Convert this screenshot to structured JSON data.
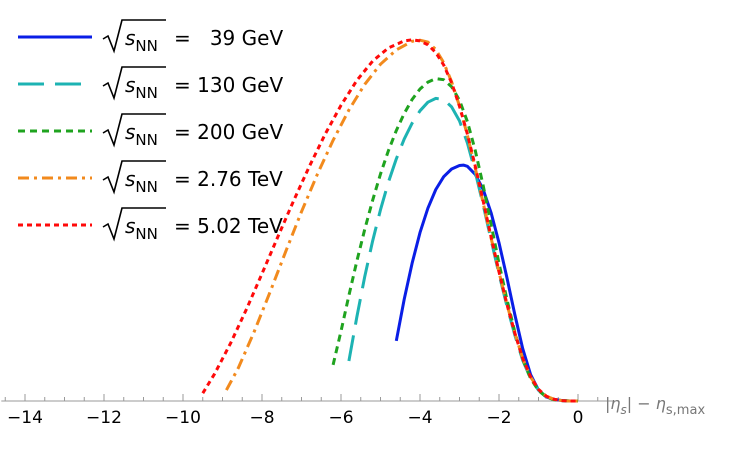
{
  "chart_data": {
    "type": "line",
    "xlabel_parts": {
      "open": "|",
      "eta": "η",
      "s": "s",
      "mid": "| − ",
      "eta2": "η",
      "sub2": "s,max"
    },
    "ylabel": "",
    "xlim": [
      -14.6,
      0.9
    ],
    "ylim": [
      0,
      1.0
    ],
    "x_ticks": [
      -14,
      -12,
      -10,
      -8,
      -6,
      -4,
      -2,
      0
    ],
    "x_tick_labels": [
      "−14",
      "−12",
      "−10",
      "−8",
      "−6",
      "−4",
      "−2",
      "0"
    ],
    "grid": false,
    "legend_position": "top-left",
    "legend_sym": {
      "s": "s",
      "sub": "NN"
    },
    "series": [
      {
        "name": "=   39 GeV",
        "color": "#0a1ee6",
        "dash": "solid",
        "x": [
          -4.6,
          -4.4,
          -4.2,
          -4.0,
          -3.8,
          -3.6,
          -3.4,
          -3.2,
          -3.0,
          -2.9,
          -2.8,
          -2.6,
          -2.4,
          -2.2,
          -2.0,
          -1.8,
          -1.6,
          -1.4,
          -1.2,
          -1.0,
          -0.8,
          -0.6,
          -0.4,
          -0.2,
          0.0
        ],
        "y": [
          0.155,
          0.262,
          0.355,
          0.434,
          0.497,
          0.545,
          0.578,
          0.598,
          0.607,
          0.608,
          0.605,
          0.584,
          0.545,
          0.485,
          0.408,
          0.318,
          0.223,
          0.135,
          0.068,
          0.028,
          0.01,
          0.004,
          0.001,
          0.0,
          0.0
        ]
      },
      {
        "name": "= 130 GeV",
        "color": "#1db3b3",
        "dash": "long",
        "x": [
          -5.8,
          -5.6,
          -5.4,
          -5.2,
          -5.0,
          -4.8,
          -4.6,
          -4.4,
          -4.2,
          -4.0,
          -3.8,
          -3.6,
          -3.4,
          -3.2,
          -3.0,
          -2.8,
          -2.6,
          -2.4,
          -2.2,
          -2.0,
          -1.8,
          -1.6,
          -1.4,
          -1.2,
          -1.0,
          -0.8,
          -0.6,
          -0.4,
          -0.2,
          0.0
        ],
        "y": [
          0.103,
          0.216,
          0.32,
          0.412,
          0.493,
          0.564,
          0.624,
          0.675,
          0.716,
          0.748,
          0.77,
          0.78,
          0.777,
          0.758,
          0.722,
          0.665,
          0.59,
          0.505,
          0.415,
          0.327,
          0.245,
          0.17,
          0.105,
          0.058,
          0.028,
          0.011,
          0.004,
          0.001,
          0.0,
          0.0
        ]
      },
      {
        "name": "= 200 GeV",
        "color": "#1fa31f",
        "dash": "short",
        "x": [
          -6.2,
          -6.0,
          -5.8,
          -5.6,
          -5.4,
          -5.2,
          -5.0,
          -4.8,
          -4.6,
          -4.4,
          -4.2,
          -4.0,
          -3.8,
          -3.6,
          -3.4,
          -3.2,
          -3.0,
          -2.8,
          -2.6,
          -2.4,
          -2.2,
          -2.0,
          -1.8,
          -1.6,
          -1.4,
          -1.2,
          -1.0,
          -0.8,
          -0.6,
          -0.4,
          -0.2,
          0.0
        ],
        "y": [
          0.093,
          0.18,
          0.272,
          0.36,
          0.442,
          0.517,
          0.585,
          0.645,
          0.697,
          0.741,
          0.777,
          0.804,
          0.822,
          0.831,
          0.828,
          0.81,
          0.775,
          0.72,
          0.645,
          0.555,
          0.455,
          0.355,
          0.262,
          0.178,
          0.108,
          0.058,
          0.027,
          0.01,
          0.003,
          0.001,
          0.0,
          0.0
        ]
      },
      {
        "name": "= 2.76 TeV",
        "color": "#f28a1d",
        "dash": "dashdot",
        "x": [
          -8.9,
          -8.6,
          -8.2,
          -7.8,
          -7.4,
          -7.0,
          -6.6,
          -6.2,
          -5.8,
          -5.4,
          -5.0,
          -4.6,
          -4.2,
          -4.0,
          -3.8,
          -3.6,
          -3.4,
          -3.2,
          -3.0,
          -2.8,
          -2.6,
          -2.4,
          -2.2,
          -2.0,
          -1.8,
          -1.6,
          -1.4,
          -1.2,
          -1.0,
          -0.8,
          -0.6,
          -0.4,
          -0.2,
          0.0
        ],
        "y": [
          0.028,
          0.085,
          0.178,
          0.28,
          0.385,
          0.488,
          0.584,
          0.672,
          0.75,
          0.816,
          0.868,
          0.905,
          0.927,
          0.93,
          0.925,
          0.906,
          0.872,
          0.823,
          0.76,
          0.685,
          0.6,
          0.51,
          0.42,
          0.332,
          0.25,
          0.175,
          0.11,
          0.062,
          0.03,
          0.012,
          0.004,
          0.001,
          0.0,
          0.0
        ]
      },
      {
        "name": "= 5.02 TeV",
        "color": "#ff0a0a",
        "dash": "dotted",
        "x": [
          -9.5,
          -9.2,
          -8.8,
          -8.4,
          -8.0,
          -7.6,
          -7.2,
          -6.8,
          -6.4,
          -6.0,
          -5.6,
          -5.2,
          -4.8,
          -4.4,
          -4.2,
          -4.0,
          -3.8,
          -3.6,
          -3.4,
          -3.2,
          -3.0,
          -2.8,
          -2.6,
          -2.4,
          -2.2,
          -2.0,
          -1.8,
          -1.6,
          -1.4,
          -1.2,
          -1.0,
          -0.8,
          -0.6,
          -0.4,
          -0.2,
          0.0
        ],
        "y": [
          0.02,
          0.07,
          0.148,
          0.235,
          0.328,
          0.423,
          0.516,
          0.605,
          0.688,
          0.762,
          0.826,
          0.876,
          0.91,
          0.928,
          0.931,
          0.928,
          0.918,
          0.898,
          0.866,
          0.82,
          0.76,
          0.688,
          0.605,
          0.515,
          0.423,
          0.333,
          0.25,
          0.175,
          0.11,
          0.062,
          0.03,
          0.012,
          0.004,
          0.001,
          0.0,
          0.0
        ]
      }
    ]
  }
}
